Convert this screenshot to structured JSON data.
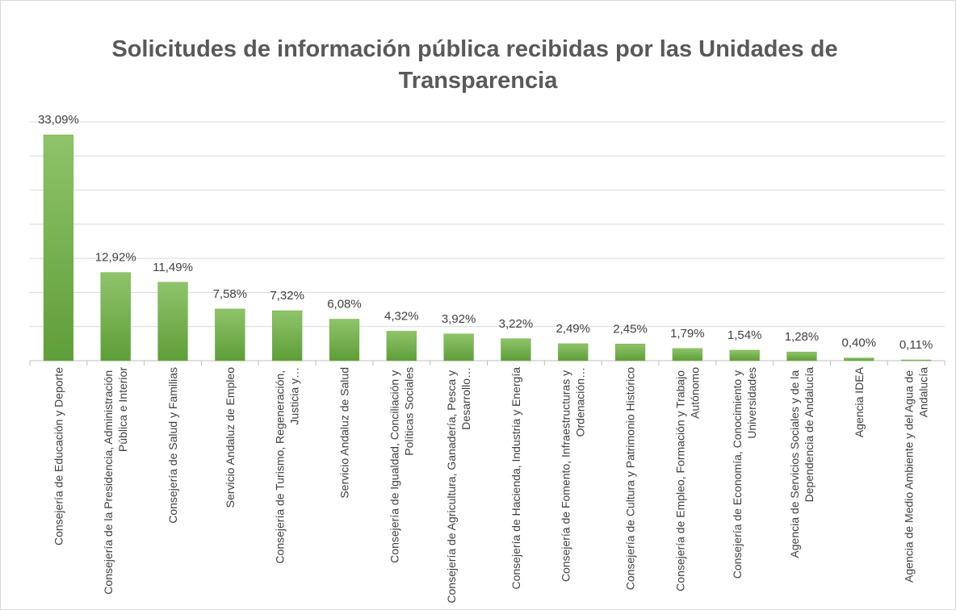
{
  "chart_data": {
    "type": "bar",
    "title": "Solicitudes de información pública recibidas por las Unidades de Transparencia",
    "categories": [
      "Consejería de Educación y Deporte",
      "Consejería de la Presidencia, Administración Pública e Interior",
      "Consejería de Salud y Familias",
      "Servicio Andaluz de Empleo",
      "Consejería de Turismo, Regeneración, Justicia y…",
      "Servicio Andaluz de Salud",
      "Consejería de Igualdad, Conciliación y Políticas Sociales",
      "Consejería de Agricultura, Ganadería, Pesca y Desarrollo…",
      "Consejería de Hacienda, Industria y Energía",
      "Consejería de Fomento, Infraestructuras y Ordenación…",
      "Consejería de Cultura y Patrimonio Histórico",
      "Consejería de Empleo, Formación y Trabajo Autónomo",
      "Consejería de Economía, Conocimiento y Universidades",
      "Agencia de Servicios Sociales y de la Dependencia de Andalucía",
      "Agencia IDEA",
      "Agencia de Medio Ambiente y del Agua de Andalucía"
    ],
    "values": [
      33.09,
      12.92,
      11.49,
      7.58,
      7.32,
      6.08,
      4.32,
      3.92,
      3.22,
      2.49,
      2.45,
      1.79,
      1.54,
      1.28,
      0.4,
      0.11
    ],
    "value_labels": [
      "33,09%",
      "12,92%",
      "11,49%",
      "7,58%",
      "7,32%",
      "6,08%",
      "4,32%",
      "3,92%",
      "3,22%",
      "2,49%",
      "2,45%",
      "1,79%",
      "1,54%",
      "1,28%",
      "0,40%",
      "0,11%"
    ],
    "color": "#70ad47",
    "ylim": [
      0,
      35
    ],
    "yticks": [
      0,
      5,
      10,
      15,
      20,
      25,
      30,
      35
    ],
    "grid": true
  }
}
